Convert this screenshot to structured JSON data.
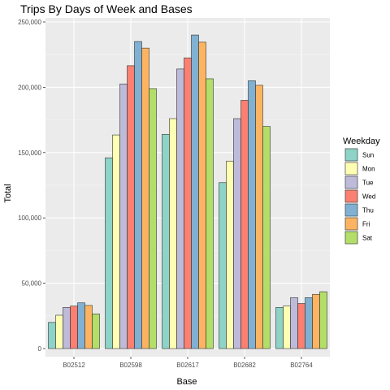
{
  "chart_data": {
    "type": "bar",
    "title": "Trips By Days of Week and Bases",
    "xlabel": "Base",
    "ylabel": "Total",
    "categories": [
      "B02512",
      "B02598",
      "B02617",
      "B02682",
      "B02764"
    ],
    "ylim": [
      0,
      250000
    ],
    "yticks": [
      0,
      50000,
      100000,
      150000,
      200000,
      250000
    ],
    "ytick_labels": [
      "0",
      "50,000",
      "100,000",
      "150,000",
      "200,000",
      "250,000"
    ],
    "grid": true,
    "legend": {
      "title": "Weekday",
      "position": "right"
    },
    "series": [
      {
        "name": "Sun",
        "color": "#8DD3C7",
        "values": [
          20000,
          146000,
          164000,
          127000,
          31500
        ]
      },
      {
        "name": "Mon",
        "color": "#FFFFB3",
        "values": [
          25500,
          163500,
          176000,
          143500,
          32500
        ]
      },
      {
        "name": "Tue",
        "color": "#BEBADA",
        "values": [
          31500,
          202500,
          214000,
          176000,
          39000
        ]
      },
      {
        "name": "Wed",
        "color": "#FB8072",
        "values": [
          32500,
          216500,
          222500,
          190000,
          34500
        ]
      },
      {
        "name": "Thu",
        "color": "#80B1D3",
        "values": [
          35000,
          235000,
          240000,
          205000,
          39000
        ]
      },
      {
        "name": "Fri",
        "color": "#FDB462",
        "values": [
          33000,
          230000,
          234500,
          201500,
          41500
        ]
      },
      {
        "name": "Sat",
        "color": "#B3DE69",
        "values": [
          26500,
          199000,
          206500,
          170000,
          43500
        ]
      }
    ]
  }
}
